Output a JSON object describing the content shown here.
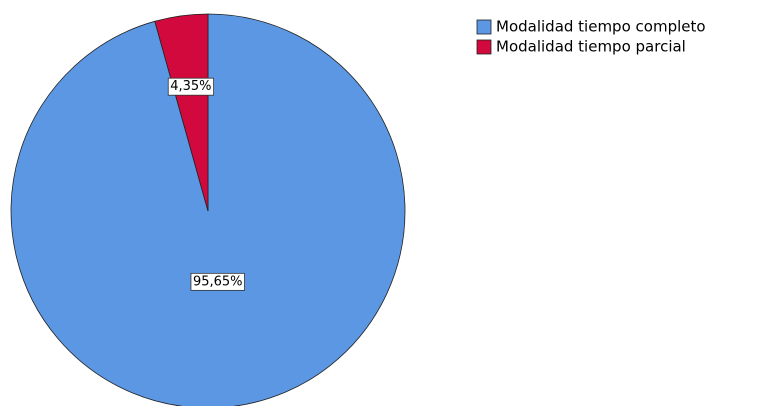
{
  "chart_data": {
    "type": "pie",
    "categories": [
      "Modalidad tiempo completo",
      "Modalidad tiempo parcial"
    ],
    "values": [
      95.65,
      4.35
    ],
    "value_labels": [
      "95,65%",
      "4,35%"
    ],
    "colors": [
      "#5b97e3",
      "#d2093c"
    ],
    "legend": "top-right"
  }
}
